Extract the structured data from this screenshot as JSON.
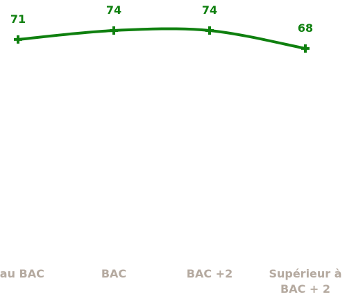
{
  "chart_data": {
    "type": "line",
    "categories": [
      ". au BAC",
      "BAC",
      "BAC +2",
      "Supérieur à BAC + 2"
    ],
    "series": [
      {
        "color": "#0f800f",
        "values": [
          71,
          74,
          74,
          68
        ]
      }
    ],
    "ylim": [
      0,
      80
    ]
  }
}
